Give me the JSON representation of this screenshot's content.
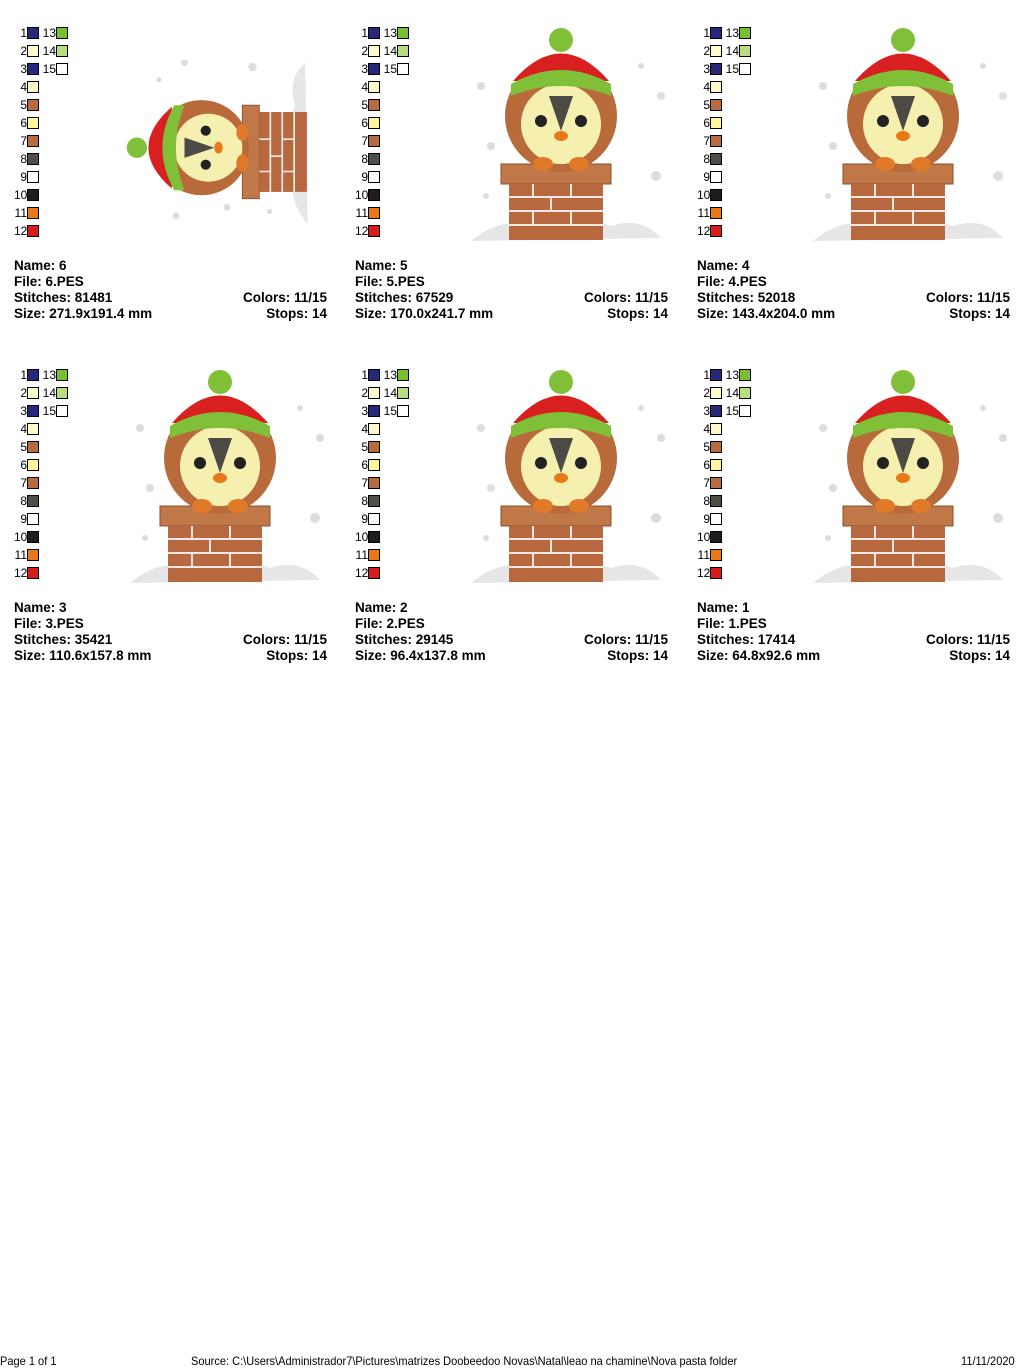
{
  "thread_colors": [
    {
      "n": "1",
      "color": "#28287a"
    },
    {
      "n": "2",
      "color": "#fffbcc"
    },
    {
      "n": "3",
      "color": "#28287a"
    },
    {
      "n": "4",
      "color": "#fff8c8"
    },
    {
      "n": "5",
      "color": "#b86a40"
    },
    {
      "n": "6",
      "color": "#fff59a"
    },
    {
      "n": "7",
      "color": "#b86a40"
    },
    {
      "n": "8",
      "color": "#504e48"
    },
    {
      "n": "9",
      "color": "#ffffff"
    },
    {
      "n": "10",
      "color": "#201c1c"
    },
    {
      "n": "11",
      "color": "#e87818"
    },
    {
      "n": "12",
      "color": "#d81c1c"
    },
    {
      "n": "13",
      "color": "#78c030"
    },
    {
      "n": "14",
      "color": "#b8dc80"
    },
    {
      "n": "15",
      "color": "#ffffff"
    }
  ],
  "designs": [
    {
      "name": "Name: 6",
      "file": "File: 6.PES",
      "stitches": "Stitches: 81481",
      "colors": "Colors: 11/15",
      "size": "Size: 271.9x191.4 mm",
      "stops": "Stops: 14",
      "orientation": "rotated"
    },
    {
      "name": "Name: 5",
      "file": "File: 5.PES",
      "stitches": "Stitches: 67529",
      "colors": "Colors: 11/15",
      "size": "Size: 170.0x241.7 mm",
      "stops": "Stops: 14",
      "orientation": "upright"
    },
    {
      "name": "Name: 4",
      "file": "File: 4.PES",
      "stitches": "Stitches: 52018",
      "colors": "Colors: 11/15",
      "size": "Size: 143.4x204.0 mm",
      "stops": "Stops: 14",
      "orientation": "upright"
    },
    {
      "name": "Name: 3",
      "file": "File: 3.PES",
      "stitches": "Stitches: 35421",
      "colors": "Colors: 11/15",
      "size": "Size: 110.6x157.8 mm",
      "stops": "Stops: 14",
      "orientation": "upright"
    },
    {
      "name": "Name: 2",
      "file": "File: 2.PES",
      "stitches": "Stitches: 29145",
      "colors": "Colors: 11/15",
      "size": "Size: 96.4x137.8 mm",
      "stops": "Stops: 14",
      "orientation": "upright"
    },
    {
      "name": "Name: 1",
      "file": "File: 1.PES",
      "stitches": "Stitches: 17414",
      "colors": "Colors: 11/15",
      "size": "Size: 64.8x92.6 mm",
      "stops": "Stops: 14",
      "orientation": "upright"
    }
  ],
  "footer": {
    "page": "Page 1 of 1",
    "source": "Source: C:\\Users\\Administrador7\\Pictures\\matrizes Doobeedoo Novas\\Natal\\leao na chamine\\Nova pasta folder",
    "date": "11/11/2020"
  }
}
